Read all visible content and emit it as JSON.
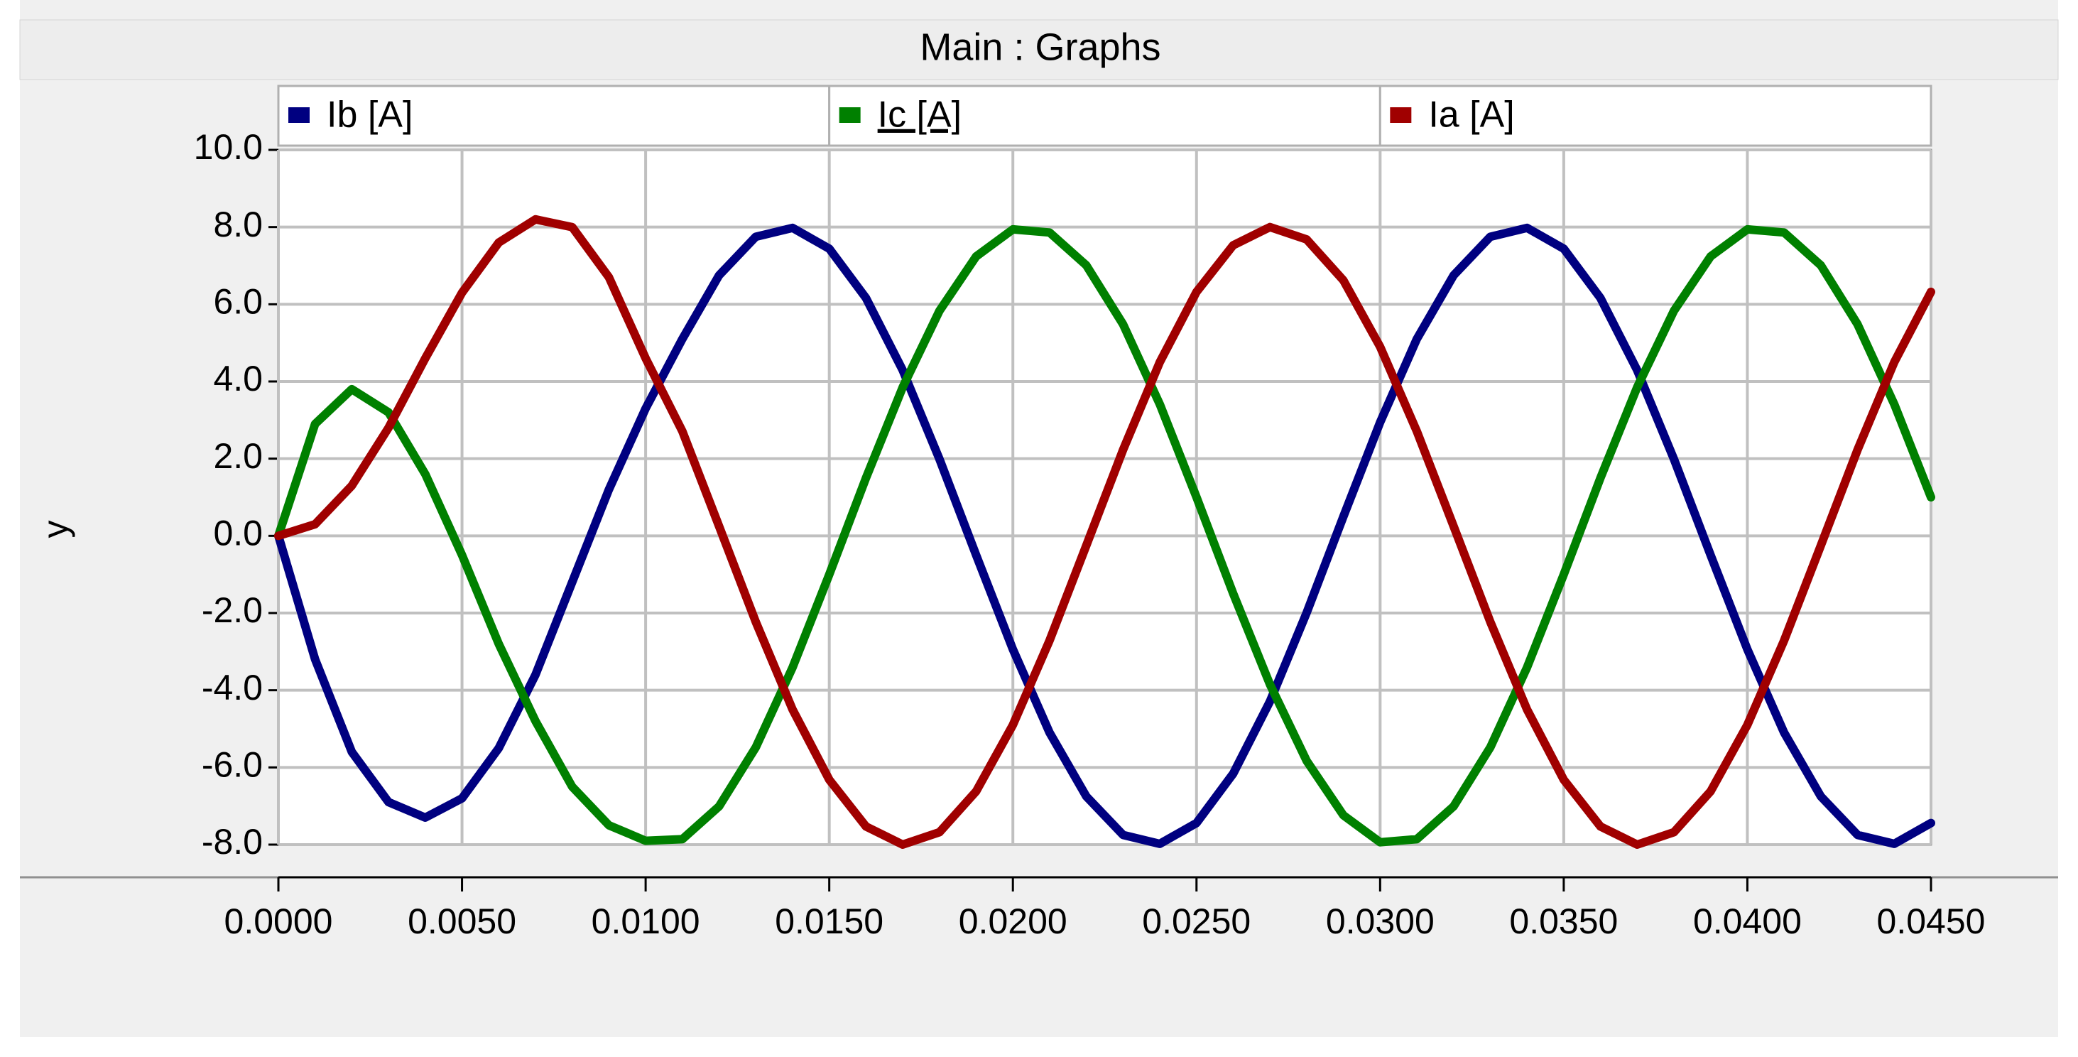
{
  "window_title": "Main : Graphs",
  "chart_data": {
    "type": "line",
    "y_label": "y",
    "x": [
      0,
      0.001,
      0.002,
      0.003,
      0.004,
      0.005,
      0.006,
      0.007,
      0.008,
      0.009,
      0.01,
      0.011,
      0.012,
      0.013,
      0.014,
      0.015,
      0.016,
      0.017,
      0.018,
      0.019,
      0.02,
      0.021,
      0.022,
      0.023,
      0.024,
      0.025,
      0.026,
      0.027,
      0.028,
      0.029,
      0.03,
      0.031,
      0.032,
      0.033,
      0.034,
      0.035,
      0.036,
      0.037,
      0.038,
      0.039,
      0.04,
      0.041,
      0.042,
      0.043,
      0.044,
      0.045
    ],
    "series": [
      {
        "name": "Ib [A]",
        "color": "#000080",
        "values": [
          0,
          -3.2,
          -5.6,
          -6.9,
          -7.3,
          -6.8,
          -5.5,
          -3.6,
          -1.2,
          1.2,
          3.3,
          5.1,
          6.75,
          7.75,
          7.98,
          7.44,
          6.16,
          4.29,
          1.99,
          -0.5,
          -2.94,
          -5.1,
          -6.75,
          -7.75,
          -7.98,
          -7.44,
          -6.16,
          -4.29,
          -1.99,
          0.5,
          2.94,
          5.1,
          6.75,
          7.75,
          7.98,
          7.44,
          6.16,
          4.29,
          1.99,
          -0.5,
          -2.94,
          -5.1,
          -6.75,
          -7.75,
          -7.98,
          -7.44
        ]
      },
      {
        "name": "Ic [A]",
        "color": "#008000",
        "values": [
          0,
          2.9,
          3.8,
          3.2,
          1.6,
          -0.5,
          -2.8,
          -4.8,
          -6.5,
          -7.5,
          -7.9,
          -7.86,
          -7.01,
          -5.48,
          -3.41,
          -1.0,
          1.5,
          3.85,
          5.83,
          7.24,
          7.94,
          7.86,
          7.01,
          5.48,
          3.41,
          1.0,
          -1.5,
          -3.85,
          -5.83,
          -7.24,
          -7.94,
          -7.86,
          -7.01,
          -5.48,
          -3.41,
          -1.0,
          1.5,
          3.85,
          5.83,
          7.24,
          7.94,
          7.86,
          7.01,
          5.48,
          3.41,
          1.0
        ]
      },
      {
        "name": "Ia [A]",
        "color": "#a00000",
        "values": [
          0,
          0.3,
          1.3,
          2.8,
          4.6,
          6.3,
          7.6,
          8.2,
          8.0,
          6.7,
          4.6,
          2.71,
          0.25,
          -2.23,
          -4.5,
          -6.32,
          -7.53,
          -8.0,
          -7.68,
          -6.62,
          -4.9,
          -2.71,
          -0.25,
          2.23,
          4.5,
          6.32,
          7.53,
          8.0,
          7.68,
          6.62,
          4.9,
          2.71,
          0.25,
          -2.23,
          -4.5,
          -6.32,
          -7.53,
          -8.0,
          -7.68,
          -6.62,
          -4.9,
          -2.71,
          -0.25,
          2.23,
          4.5,
          6.32
        ]
      }
    ],
    "xlim": [
      0,
      0.045
    ],
    "ylim": [
      -8,
      10
    ],
    "xticks": [
      {
        "value": 0,
        "label": "0.0000"
      },
      {
        "value": 0.005,
        "label": "0.0050"
      },
      {
        "value": 0.01,
        "label": "0.0100"
      },
      {
        "value": 0.015,
        "label": "0.0150"
      },
      {
        "value": 0.02,
        "label": "0.0200"
      },
      {
        "value": 0.025,
        "label": "0.0250"
      },
      {
        "value": 0.03,
        "label": "0.0300"
      },
      {
        "value": 0.035,
        "label": "0.0350"
      },
      {
        "value": 0.04,
        "label": "0.0400"
      },
      {
        "value": 0.045,
        "label": "0.0450"
      }
    ],
    "yticks": [
      {
        "value": -8,
        "label": "-8.0"
      },
      {
        "value": -6,
        "label": "-6.0"
      },
      {
        "value": -4,
        "label": "-4.0"
      },
      {
        "value": -2,
        "label": "-2.0"
      },
      {
        "value": 0,
        "label": "0.0"
      },
      {
        "value": 2,
        "label": "2.0"
      },
      {
        "value": 4,
        "label": "4.0"
      },
      {
        "value": 6,
        "label": "6.0"
      },
      {
        "value": 8,
        "label": "8.0"
      },
      {
        "value": 10,
        "label": "10.0"
      }
    ],
    "grid": true
  }
}
